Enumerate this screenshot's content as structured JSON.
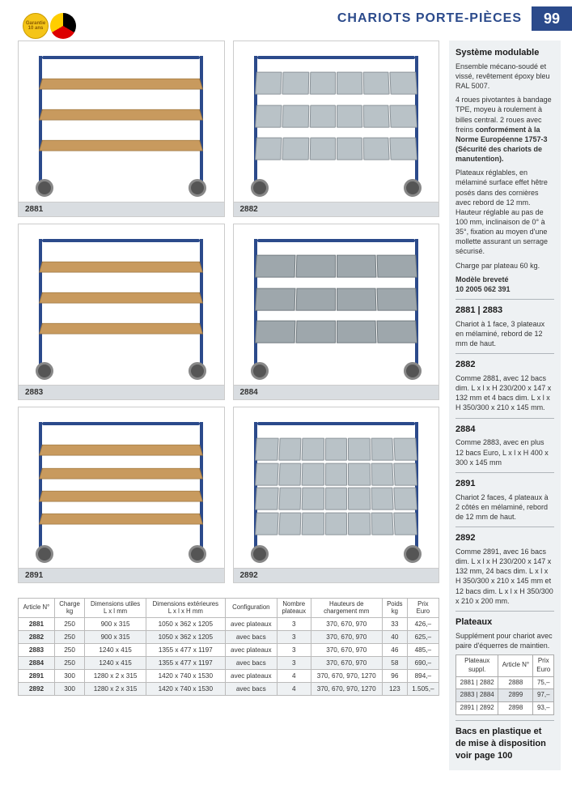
{
  "header": {
    "title": "CHARIOTS PORTE-PIÈCES",
    "page_number": "99",
    "badge_guarantee": "Garantie\n10 ans",
    "badge_made_in": ""
  },
  "colors": {
    "brand_blue": "#2b4a8b",
    "sidebar_bg": "#eef1f3",
    "shelf_wood": "#c89a5e",
    "bin_grey": "#b9c2c7",
    "euro_grey": "#9ea7ac"
  },
  "products": [
    {
      "id": "2881",
      "type": "wood",
      "shelves": 3
    },
    {
      "id": "2882",
      "type": "bins",
      "rows": 3,
      "bins_per_row": 6
    },
    {
      "id": "2883",
      "type": "wood",
      "shelves": 3
    },
    {
      "id": "2884",
      "type": "euro",
      "rows": 3,
      "bins_per_row": 4
    },
    {
      "id": "2891",
      "type": "wood",
      "shelves": 4
    },
    {
      "id": "2892",
      "type": "bins",
      "rows": 4,
      "bins_per_row": 7
    }
  ],
  "spec_table": {
    "headers": [
      "Article N°",
      "Charge\nkg",
      "Dimensions utiles\nL x l mm",
      "Dimensions extérieures\nL x l x H mm",
      "Configuration",
      "Nombre\nplateaux",
      "Hauteurs de\nchargement mm",
      "Poids\nkg",
      "Prix\nEuro"
    ],
    "rows": [
      [
        "2881",
        "250",
        "900 x 315",
        "1050 x 362 x 1205",
        "avec plateaux",
        "3",
        "370, 670, 970",
        "33",
        "426,–"
      ],
      [
        "2882",
        "250",
        "900 x 315",
        "1050 x 362 x 1205",
        "avec bacs",
        "3",
        "370, 670, 970",
        "40",
        "625,–"
      ],
      [
        "2883",
        "250",
        "1240 x 415",
        "1355 x 477 x 1197",
        "avec plateaux",
        "3",
        "370, 670, 970",
        "46",
        "485,–"
      ],
      [
        "2884",
        "250",
        "1240 x 415",
        "1355 x 477 x 1197",
        "avec bacs",
        "3",
        "370, 670, 970",
        "58",
        "690,–"
      ],
      [
        "2891",
        "300",
        "1280 x 2 x 315",
        "1420 x 740 x 1530",
        "avec plateaux",
        "4",
        "370, 670, 970, 1270",
        "96",
        "894,–"
      ],
      [
        "2892",
        "300",
        "1280 x 2 x 315",
        "1420 x 740 x 1530",
        "avec bacs",
        "4",
        "370, 670, 970, 1270",
        "123",
        "1.505,–"
      ]
    ]
  },
  "sidebar": {
    "sec1_title": "Système modulable",
    "sec1_p1": "Ensemble mécano-soudé et vissé, revêtement époxy bleu RAL 5007.",
    "sec1_p2a": "4 roues pivotantes à bandage TPE, moyeu à roulement à billes central. 2 roues avec freins ",
    "sec1_p2b": "conformément à la Norme Européenne 1757-3 (Sécurité des chariots de manutention).",
    "sec1_p3": "Plateaux réglables, en mélaminé surface effet hêtre posés dans des cornières avec rebord de 12 mm. Hauteur réglable au pas de 100 mm, inclinaison de 0° à 35°, fixation au moyen d'une mollette assurant un serrage sécurisé.",
    "sec1_p4": "Charge par plateau 60 kg.",
    "sec1_p5a": "Modèle breveté",
    "sec1_p5b": "10 2005 062 391",
    "sec2_title": "2881 | 2883",
    "sec2_p": "Chariot à 1 face, 3 plateaux en mélaminé, rebord de 12 mm de haut.",
    "sec3_title": "2882",
    "sec3_p": "Comme 2881, avec 12 bacs dim. L x l x H 230/200 x 147 x 132 mm et 4 bacs dim. L x l x H 350/300 x 210 x 145 mm.",
    "sec4_title": "2884",
    "sec4_p": "Comme 2883, avec en plus 12 bacs Euro, L x l x H 400 x 300 x 145 mm",
    "sec5_title": "2891",
    "sec5_p": "Chariot 2 faces, 4 plateaux à 2 côtés en mélaminé, rebord de 12 mm de haut.",
    "sec6_title": "2892",
    "sec6_p": "Comme 2891, avec 16 bacs dim. L x l x H 230/200 x 147 x 132 mm, 24 bacs dim. L x l x H 350/300 x 210 x 145 mm et 12 bacs dim. L x l x H 350/300 x 210 x 200 mm.",
    "sec7_title": "Plateaux",
    "sec7_p": "Supplément pour chariot avec paire d'équerres de maintien.",
    "mini_table": {
      "headers": [
        "Plateaux\nsuppl.",
        "Article N°",
        "Prix\nEuro"
      ],
      "rows": [
        [
          "2881 | 2882",
          "2888",
          "75,–"
        ],
        [
          "2883 | 2884",
          "2899",
          "97,–"
        ],
        [
          "2891 | 2892",
          "2898",
          "93,–"
        ]
      ]
    },
    "sec8_title": "Bacs en plastique et de mise à disposition voir page 100"
  }
}
